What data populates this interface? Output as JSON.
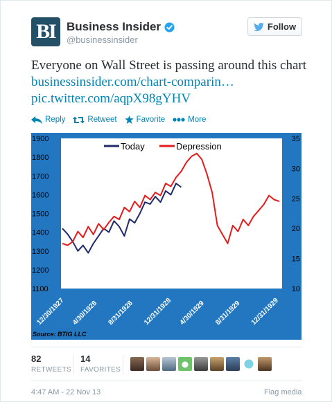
{
  "account": {
    "avatar_text": "BI",
    "name": "Business Insider",
    "handle": "@businessinsider",
    "follow_label": "Follow"
  },
  "tweet": {
    "text": "Everyone on Wall Street is passing around this chart ",
    "link1": "businessinsider.com/chart-comparin…",
    "link2": "pic.twitter.com/aqpX98gYHV"
  },
  "actions": [
    {
      "label": "Reply",
      "icon": "reply-icon"
    },
    {
      "label": "Retweet",
      "icon": "retweet-icon"
    },
    {
      "label": "Favorite",
      "icon": "star-icon"
    },
    {
      "label": "More",
      "icon": "more-icon"
    }
  ],
  "stats": {
    "retweets_count": "82",
    "retweets_label": "RETWEETS",
    "favorites_count": "14",
    "favorites_label": "FAVORITES"
  },
  "footer": {
    "timestamp": "4:47 AM - 22 Nov 13",
    "flag_label": "Flag media"
  },
  "colors": {
    "link": "#0084b4",
    "chart_bg": "#2277c0",
    "today_series": "#1f2a6b",
    "depression_series": "#e31b1b"
  },
  "chart_data": {
    "type": "line",
    "title": "",
    "x_tick_labels": [
      "12/30/1927",
      "4/30/1928",
      "8/31/1928",
      "12/31/1928",
      "4/30/1929",
      "8/31/1929",
      "12/31/1929"
    ],
    "left_axis": {
      "ylim": [
        1100,
        1900
      ],
      "ticks": [
        1100,
        1200,
        1300,
        1400,
        1500,
        1600,
        1700,
        1800,
        1900
      ]
    },
    "right_axis": {
      "ylim": [
        10,
        35
      ],
      "ticks": [
        10,
        15,
        20,
        25,
        30,
        35
      ]
    },
    "legend": {
      "placement": "top-center"
    },
    "source": "Source: BTIG LLC",
    "grid": false,
    "series": [
      {
        "name": "Today",
        "axis": "left",
        "x": [
          0,
          1,
          2,
          3,
          4,
          5,
          6,
          7,
          8,
          9,
          10,
          11,
          12,
          13,
          14,
          15,
          16,
          17,
          18,
          19,
          20,
          21,
          22,
          23
        ],
        "values": [
          1420,
          1390,
          1350,
          1300,
          1330,
          1290,
          1340,
          1380,
          1420,
          1400,
          1460,
          1430,
          1380,
          1470,
          1450,
          1500,
          1560,
          1550,
          1590,
          1560,
          1620,
          1600,
          1660,
          1640
        ]
      },
      {
        "name": "Depression",
        "axis": "right",
        "x": [
          0,
          1,
          2,
          3,
          4,
          5,
          6,
          7,
          8,
          9,
          10,
          11,
          12,
          13,
          14,
          15,
          16,
          17,
          18,
          19,
          20,
          21,
          22,
          23,
          24,
          25,
          26,
          27,
          28,
          29,
          30,
          31,
          32,
          33,
          34,
          35,
          36,
          37,
          38,
          39,
          40,
          41,
          42
        ],
        "values": [
          17.5,
          17.2,
          17.8,
          19.5,
          18.5,
          20.3,
          19.0,
          20.8,
          19.8,
          21.0,
          22.0,
          21.5,
          23.5,
          22.8,
          24.5,
          23.5,
          25.5,
          24.8,
          26.0,
          25.5,
          27.5,
          27.0,
          28.5,
          29.5,
          31.0,
          32.0,
          32.5,
          31.5,
          29.0,
          26.0,
          20.5,
          19.0,
          17.5,
          20.5,
          19.5,
          21.5,
          20.5,
          22.0,
          23.0,
          24.0,
          25.5,
          24.8,
          24.5
        ]
      }
    ]
  }
}
